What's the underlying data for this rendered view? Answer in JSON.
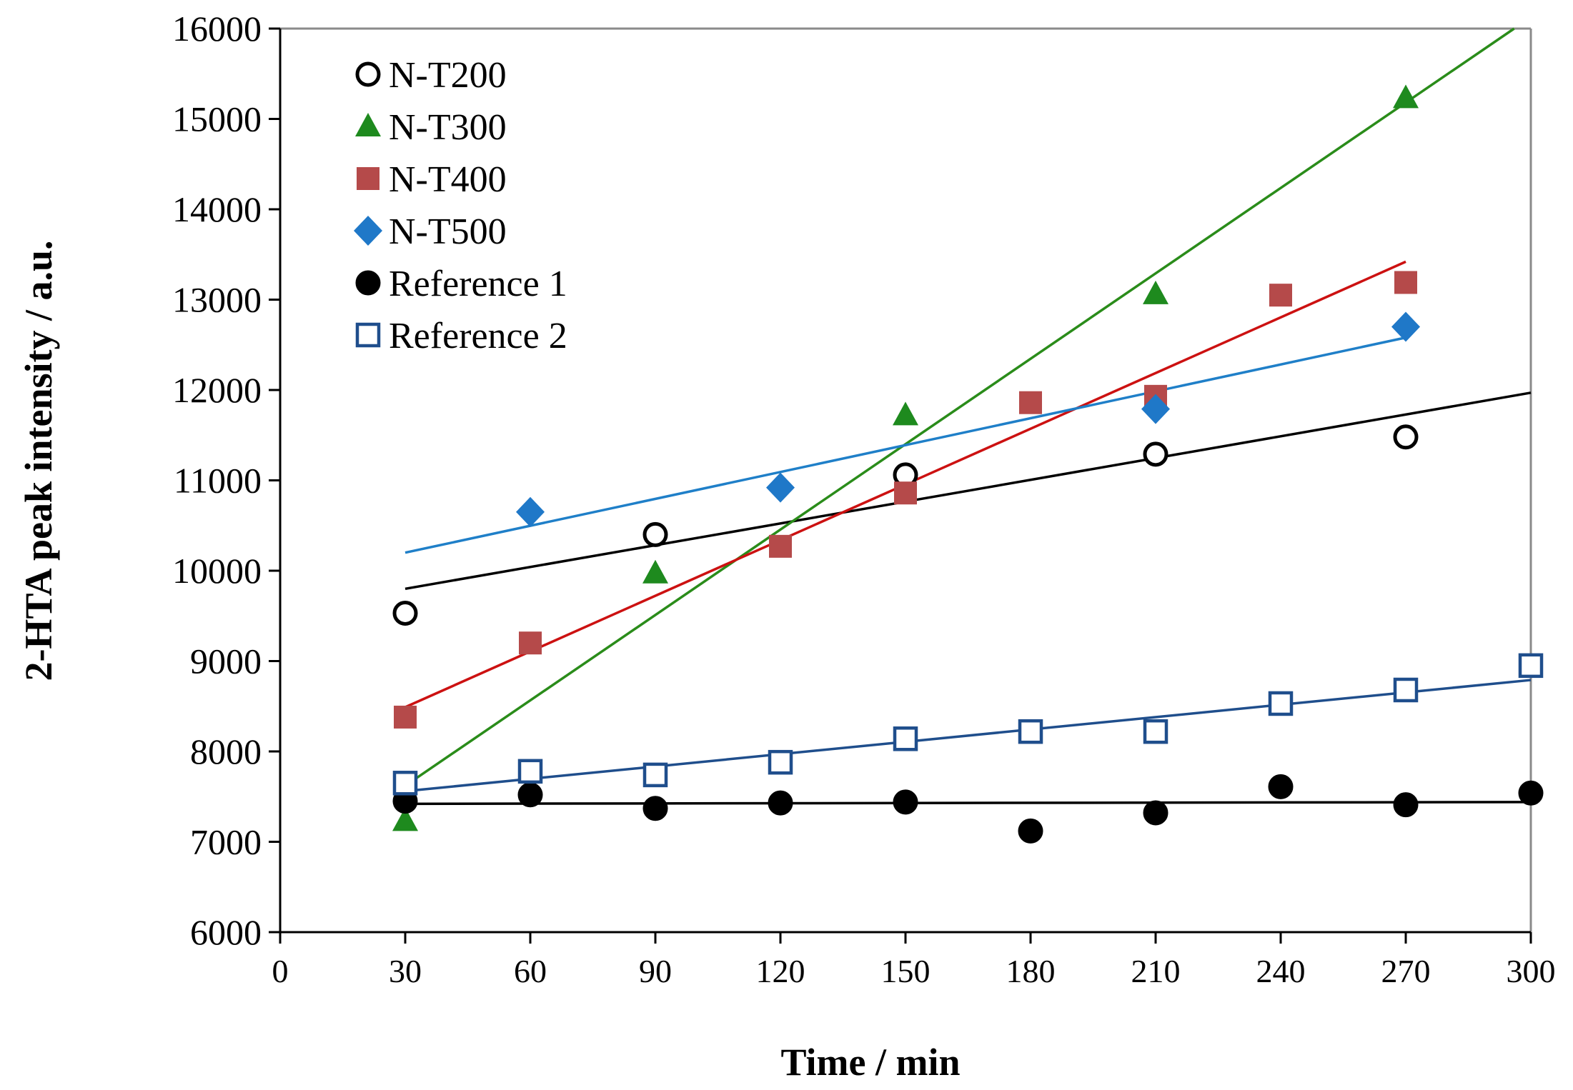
{
  "chart_data": {
    "type": "scatter",
    "title": "",
    "xlabel": "Time / min",
    "ylabel": "2-HTA peak intensity / a.u.",
    "xlim": [
      0,
      300
    ],
    "ylim": [
      6000,
      16000
    ],
    "x_ticks": [
      0,
      30,
      60,
      90,
      120,
      150,
      180,
      210,
      240,
      270,
      300
    ],
    "y_ticks": [
      6000,
      7000,
      8000,
      9000,
      10000,
      11000,
      12000,
      13000,
      14000,
      15000,
      16000
    ],
    "grid": false,
    "legend_position": "top-left",
    "series": [
      {
        "name": "N-T200",
        "marker": "circle-open",
        "color": "#000000",
        "line_color": "#000000",
        "x": [
          30,
          90,
          150,
          210,
          270
        ],
        "y": [
          9530,
          10400,
          11060,
          11290,
          11480
        ],
        "trendline": {
          "x": [
            30,
            300
          ],
          "y": [
            9800,
            11970
          ]
        }
      },
      {
        "name": "N-T300",
        "marker": "triangle",
        "color": "#1e8a1e",
        "line_color": "#2a8c1a",
        "x": [
          30,
          90,
          150,
          210,
          270
        ],
        "y": [
          7230,
          9970,
          11720,
          13060,
          15230
        ],
        "trendline": {
          "x": [
            30,
            296
          ],
          "y": [
            7620,
            16000
          ]
        }
      },
      {
        "name": "N-T400",
        "marker": "square",
        "color": "#b54a4a",
        "line_color": "#cc1111",
        "x": [
          30,
          60,
          120,
          150,
          180,
          210,
          240,
          270
        ],
        "y": [
          8380,
          9200,
          10270,
          10860,
          11860,
          11930,
          13050,
          13190
        ],
        "trendline": {
          "x": [
            30,
            270
          ],
          "y": [
            8490,
            13420
          ]
        }
      },
      {
        "name": "N-T500",
        "marker": "diamond",
        "color": "#1f78c8",
        "line_color": "#1f7fc8",
        "x": [
          60,
          120,
          210,
          270
        ],
        "y": [
          10650,
          10920,
          11790,
          12700
        ],
        "trendline": {
          "x": [
            30,
            270
          ],
          "y": [
            10200,
            12580
          ]
        }
      },
      {
        "name": "Reference 1",
        "marker": "circle",
        "color": "#000000",
        "line_color": "#000000",
        "x": [
          30,
          60,
          90,
          120,
          150,
          180,
          210,
          240,
          270,
          300
        ],
        "y": [
          7450,
          7520,
          7370,
          7430,
          7440,
          7120,
          7320,
          7610,
          7410,
          7540
        ],
        "trendline": {
          "x": [
            30,
            300
          ],
          "y": [
            7420,
            7440
          ]
        }
      },
      {
        "name": "Reference 2",
        "marker": "square-open",
        "color": "#1f4e8c",
        "line_color": "#1f4e8c",
        "x": [
          30,
          60,
          90,
          120,
          150,
          180,
          210,
          240,
          270,
          300
        ],
        "y": [
          7650,
          7780,
          7740,
          7880,
          8140,
          8220,
          8220,
          8530,
          8680,
          8950
        ],
        "trendline": {
          "x": [
            30,
            300
          ],
          "y": [
            7560,
            8790
          ]
        }
      }
    ]
  }
}
